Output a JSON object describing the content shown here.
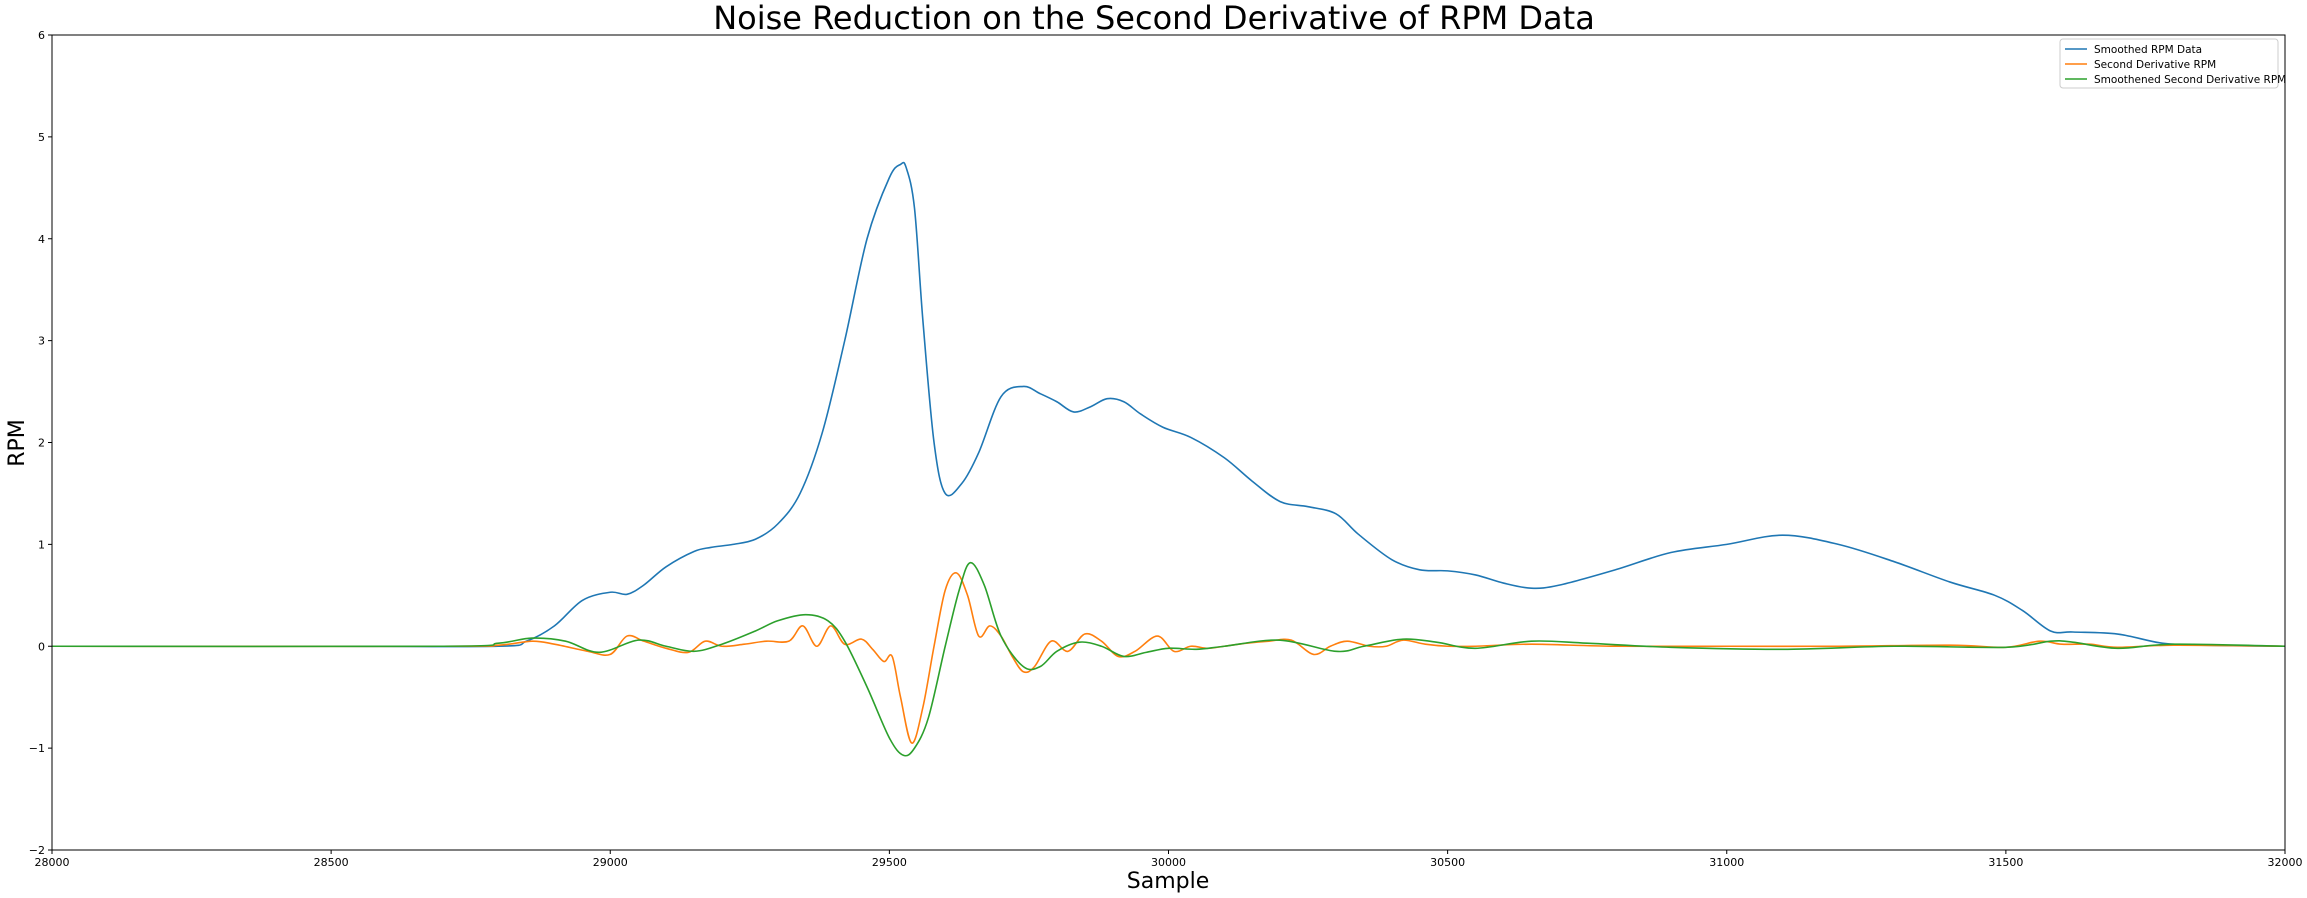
{
  "chart_data": {
    "type": "line",
    "title": "Noise Reduction on the Second Derivative of RPM Data",
    "xlabel": "Sample",
    "ylabel": "RPM",
    "xlim": [
      28000,
      32000
    ],
    "ylim": [
      -2,
      6
    ],
    "xticks": [
      28000,
      28500,
      29000,
      29500,
      30000,
      30500,
      31000,
      31500,
      32000
    ],
    "yticks": [
      -2,
      -1,
      0,
      1,
      2,
      3,
      4,
      5,
      6
    ],
    "grid": false,
    "legend_position": "upper-right",
    "series": [
      {
        "name": "Smoothed RPM Data",
        "color": "#1f77b4",
        "x": [
          28000,
          28500,
          28800,
          28850,
          28900,
          28950,
          29000,
          29030,
          29060,
          29100,
          29150,
          29180,
          29220,
          29260,
          29300,
          29340,
          29380,
          29420,
          29460,
          29500,
          29520,
          29530,
          29545,
          29560,
          29580,
          29600,
          29630,
          29660,
          29700,
          29740,
          29770,
          29800,
          29830,
          29860,
          29890,
          29920,
          29950,
          29990,
          30040,
          30100,
          30150,
          30200,
          30250,
          30300,
          30340,
          30400,
          30450,
          30500,
          30550,
          30600,
          30650,
          30700,
          30800,
          30900,
          31000,
          31100,
          31200,
          31300,
          31400,
          31480,
          31530,
          31580,
          31620,
          31700,
          31780,
          31850,
          32000
        ],
        "y": [
          0.0,
          0.0,
          0.0,
          0.05,
          0.2,
          0.45,
          0.53,
          0.51,
          0.6,
          0.78,
          0.93,
          0.97,
          1.0,
          1.05,
          1.2,
          1.5,
          2.1,
          3.0,
          4.0,
          4.6,
          4.73,
          4.7,
          4.3,
          3.2,
          2.0,
          1.5,
          1.6,
          1.9,
          2.45,
          2.55,
          2.48,
          2.4,
          2.3,
          2.35,
          2.43,
          2.4,
          2.28,
          2.15,
          2.05,
          1.85,
          1.62,
          1.42,
          1.37,
          1.3,
          1.1,
          0.85,
          0.75,
          0.74,
          0.7,
          0.62,
          0.57,
          0.6,
          0.75,
          0.92,
          1.0,
          1.09,
          1.0,
          0.83,
          0.63,
          0.5,
          0.35,
          0.15,
          0.14,
          0.12,
          0.03,
          0.01,
          0.0
        ]
      },
      {
        "name": "Second Derivative RPM",
        "color": "#ff7f0e",
        "x": [
          28000,
          28700,
          28800,
          28860,
          28900,
          28960,
          29000,
          29030,
          29060,
          29100,
          29140,
          29170,
          29200,
          29240,
          29280,
          29320,
          29345,
          29370,
          29395,
          29420,
          29450,
          29470,
          29490,
          29505,
          29520,
          29540,
          29560,
          29580,
          29600,
          29620,
          29640,
          29660,
          29680,
          29700,
          29720,
          29740,
          29760,
          29790,
          29820,
          29850,
          29880,
          29910,
          29940,
          29980,
          30010,
          30040,
          30070,
          30100,
          30140,
          30180,
          30220,
          30260,
          30290,
          30320,
          30360,
          30390,
          30420,
          30460,
          30500,
          30550,
          30650,
          30800,
          31000,
          31200,
          31400,
          31500,
          31560,
          31600,
          31650,
          31700,
          31800,
          32000
        ],
        "y": [
          0.0,
          0.0,
          0.01,
          0.05,
          0.02,
          -0.05,
          -0.08,
          0.1,
          0.05,
          -0.02,
          -0.06,
          0.05,
          0.0,
          0.02,
          0.05,
          0.05,
          0.2,
          0.0,
          0.2,
          0.02,
          0.07,
          -0.03,
          -0.15,
          -0.1,
          -0.5,
          -0.95,
          -0.6,
          0.0,
          0.55,
          0.72,
          0.5,
          0.1,
          0.2,
          0.1,
          -0.1,
          -0.25,
          -0.2,
          0.05,
          -0.05,
          0.12,
          0.05,
          -0.1,
          -0.05,
          0.1,
          -0.05,
          0.0,
          -0.02,
          0.0,
          0.03,
          0.05,
          0.06,
          -0.08,
          0.0,
          0.05,
          0.0,
          0.0,
          0.06,
          0.02,
          0.0,
          0.0,
          0.02,
          0.0,
          0.0,
          0.0,
          0.01,
          -0.01,
          0.05,
          0.02,
          0.02,
          -0.01,
          0.01,
          0.0
        ]
      },
      {
        "name": "Smoothened Second Derivative RPM",
        "color": "#2ca02c",
        "x": [
          28000,
          28700,
          28800,
          28860,
          28920,
          28980,
          29050,
          29100,
          29150,
          29200,
          29260,
          29300,
          29350,
          29390,
          29420,
          29460,
          29500,
          29525,
          29545,
          29570,
          29600,
          29625,
          29645,
          29670,
          29700,
          29740,
          29770,
          29800,
          29840,
          29880,
          29920,
          29960,
          30000,
          30050,
          30100,
          30200,
          30300,
          30350,
          30420,
          30480,
          30550,
          30650,
          30750,
          30900,
          31100,
          31300,
          31500,
          31580,
          31620,
          31700,
          31800,
          32000
        ],
        "y": [
          0.0,
          0.0,
          0.03,
          0.08,
          0.05,
          -0.06,
          0.06,
          0.0,
          -0.05,
          0.02,
          0.15,
          0.25,
          0.31,
          0.25,
          0.05,
          -0.4,
          -0.9,
          -1.07,
          -1.0,
          -0.7,
          0.0,
          0.55,
          0.82,
          0.6,
          0.1,
          -0.2,
          -0.2,
          -0.05,
          0.04,
          0.0,
          -0.1,
          -0.06,
          -0.02,
          -0.03,
          0.0,
          0.06,
          -0.05,
          0.0,
          0.07,
          0.04,
          -0.02,
          0.05,
          0.03,
          -0.01,
          -0.03,
          0.0,
          -0.01,
          0.05,
          0.04,
          -0.02,
          0.02,
          0.0
        ]
      }
    ]
  }
}
